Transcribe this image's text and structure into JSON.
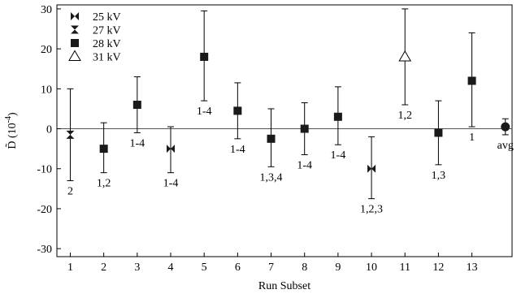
{
  "chart_data": {
    "type": "scatter",
    "xlabel": "Run Subset",
    "ylabel": "D̃ (10",
    "ylabel_exp": "-4",
    "ylabel_close": ")",
    "xlim": [
      0.6,
      14.2
    ],
    "ylim": [
      -32,
      31
    ],
    "x_ticks": [
      1,
      2,
      3,
      4,
      5,
      6,
      7,
      8,
      9,
      10,
      11,
      12,
      13
    ],
    "y_ticks": [
      -30,
      -20,
      -10,
      0,
      10,
      20,
      30
    ],
    "zero_line": true,
    "legend": {
      "placement": "top-left",
      "entries": [
        {
          "label": "25 kV",
          "marker": "bowtie-h"
        },
        {
          "label": "27 kV",
          "marker": "bowtie-v"
        },
        {
          "label": "28 kV",
          "marker": "square"
        },
        {
          "label": "31 kV",
          "marker": "triangle-open"
        }
      ]
    },
    "points": [
      {
        "x": 1,
        "y": -1.5,
        "lo": -13,
        "hi": 10,
        "marker": "bowtie-v",
        "label": "2",
        "label_pos": "below"
      },
      {
        "x": 2,
        "y": -5,
        "lo": -11,
        "hi": 1.5,
        "marker": "square",
        "label": "1,2",
        "label_pos": "below"
      },
      {
        "x": 3,
        "y": 6,
        "lo": -1,
        "hi": 13,
        "marker": "square",
        "label": "1-4",
        "label_pos": "below"
      },
      {
        "x": 4,
        "y": -5,
        "lo": -11,
        "hi": 0.5,
        "marker": "bowtie-h",
        "label": "1-4",
        "label_pos": "below"
      },
      {
        "x": 5,
        "y": 18,
        "lo": 7,
        "hi": 29.5,
        "marker": "square",
        "label": "1-4",
        "label_pos": "below"
      },
      {
        "x": 6,
        "y": 4.5,
        "lo": -2.5,
        "hi": 11.5,
        "marker": "square",
        "label": "1-4",
        "label_pos": "below"
      },
      {
        "x": 7,
        "y": -2.5,
        "lo": -9.5,
        "hi": 5,
        "marker": "square",
        "label": "1,3,4",
        "label_pos": "below"
      },
      {
        "x": 8,
        "y": 0,
        "lo": -6.5,
        "hi": 6.5,
        "marker": "square",
        "label": "1-4",
        "label_pos": "below"
      },
      {
        "x": 9,
        "y": 3,
        "lo": -4,
        "hi": 10.5,
        "marker": "square",
        "label": "1-4",
        "label_pos": "below"
      },
      {
        "x": 10,
        "y": -10,
        "lo": -17.5,
        "hi": -2,
        "marker": "bowtie-h",
        "label": "1,2,3",
        "label_pos": "below"
      },
      {
        "x": 11,
        "y": 18,
        "lo": 6,
        "hi": 30,
        "marker": "triangle-open",
        "label": "1,2",
        "label_pos": "below"
      },
      {
        "x": 12,
        "y": -1,
        "lo": -9,
        "hi": 7,
        "marker": "square",
        "label": "1,3",
        "label_pos": "below"
      },
      {
        "x": 13,
        "y": 12,
        "lo": 0.5,
        "hi": 24,
        "marker": "square",
        "label": "1",
        "label_pos": "below"
      },
      {
        "x": 14,
        "y": 0.5,
        "lo": -1.5,
        "hi": 2.5,
        "marker": "circle",
        "label": "avg",
        "label_pos": "below"
      }
    ]
  }
}
